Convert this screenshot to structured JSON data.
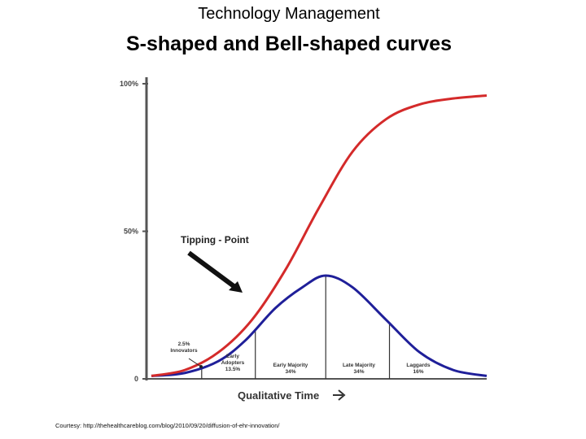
{
  "header": {
    "title": "Technology  Management",
    "subtitle": "S-shaped and Bell-shaped curves"
  },
  "footer": {
    "courtesy": "Courtesy: http://thehealthcareblog.com/blog/2010/09/20/diffusion-of-ehr-innovation/"
  },
  "colors": {
    "s_curve": "#d42a2a",
    "bell_curve": "#1f1f99",
    "axis": "#555555",
    "text": "#000000"
  },
  "chart_data": {
    "type": "line",
    "xlabel": "Qualitative Time",
    "y_tick_labels": [
      "0",
      "50%",
      "100%"
    ],
    "ylim": [
      0,
      100
    ],
    "xlim": [
      0,
      100
    ],
    "grid": false,
    "annotation": {
      "text": "Tipping - Point",
      "icon": "arrow-icon"
    },
    "series": [
      {
        "kind": "s-curve",
        "x": [
          0,
          10,
          20,
          30,
          40,
          50,
          60,
          70,
          80,
          90,
          100
        ],
        "y": [
          1,
          3,
          9,
          20,
          37,
          58,
          77,
          88,
          93,
          95,
          96
        ]
      },
      {
        "kind": "bell-curve",
        "x": [
          0,
          10,
          20,
          28,
          37,
          45,
          52,
          60,
          70,
          80,
          90,
          100
        ],
        "y": [
          1,
          2,
          6,
          13,
          24,
          31,
          35,
          31,
          20,
          9,
          3,
          1
        ]
      }
    ],
    "segments": [
      {
        "label": "2.5%\nInnovators",
        "boundary_x": 15
      },
      {
        "label": "Early\nAdopters\n13.5%",
        "boundary_x": 31
      },
      {
        "label": "Early Majority\n34%",
        "boundary_x": 52
      },
      {
        "label": "Late Majority\n34%",
        "boundary_x": 71
      },
      {
        "label": "Laggards\n16%"
      }
    ]
  }
}
